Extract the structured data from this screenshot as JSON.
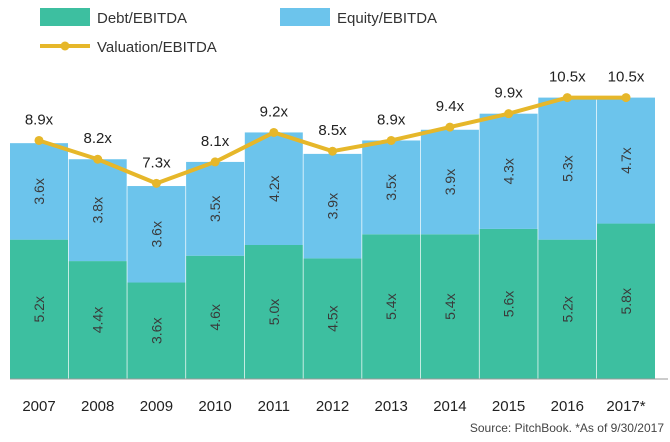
{
  "chart_data": {
    "type": "bar",
    "stacked": true,
    "categories": [
      "2007",
      "2008",
      "2009",
      "2010",
      "2011",
      "2012",
      "2013",
      "2014",
      "2015",
      "2016",
      "2017*"
    ],
    "series": [
      {
        "name": "Debt/EBITDA",
        "type": "bar",
        "color": "#3dbfa0",
        "values": [
          5.2,
          4.4,
          3.6,
          4.6,
          5.0,
          4.5,
          5.4,
          5.4,
          5.6,
          5.2,
          5.8
        ],
        "labels": [
          "5.2x",
          "4.4x",
          "3.6x",
          "4.6x",
          "5.0x",
          "4.5x",
          "5.4x",
          "5.4x",
          "5.6x",
          "5.2x",
          "5.8x"
        ]
      },
      {
        "name": "Equity/EBITDA",
        "type": "bar",
        "color": "#6cc4ec",
        "values": [
          3.6,
          3.8,
          3.6,
          3.5,
          4.2,
          3.9,
          3.5,
          3.9,
          4.3,
          5.3,
          4.7
        ],
        "labels": [
          "3.6x",
          "3.8x",
          "3.6x",
          "3.5x",
          "4.2x",
          "3.9x",
          "3.5x",
          "3.9x",
          "4.3x",
          "5.3x",
          "4.7x"
        ]
      },
      {
        "name": "Valuation/EBITDA",
        "type": "line",
        "color": "#e6b72a",
        "values": [
          8.9,
          8.2,
          7.3,
          8.1,
          9.2,
          8.5,
          8.9,
          9.4,
          9.9,
          10.5,
          10.5
        ],
        "labels": [
          "8.9x",
          "8.2x",
          "7.3x",
          "8.1x",
          "9.2x",
          "8.5x",
          "8.9x",
          "9.4x",
          "9.9x",
          "10.5x",
          "10.5x"
        ]
      }
    ],
    "ylim": [
      0,
      12
    ],
    "grid": false,
    "legend": "top-left",
    "source": "Source: PitchBook. *As of 9/30/2017"
  }
}
